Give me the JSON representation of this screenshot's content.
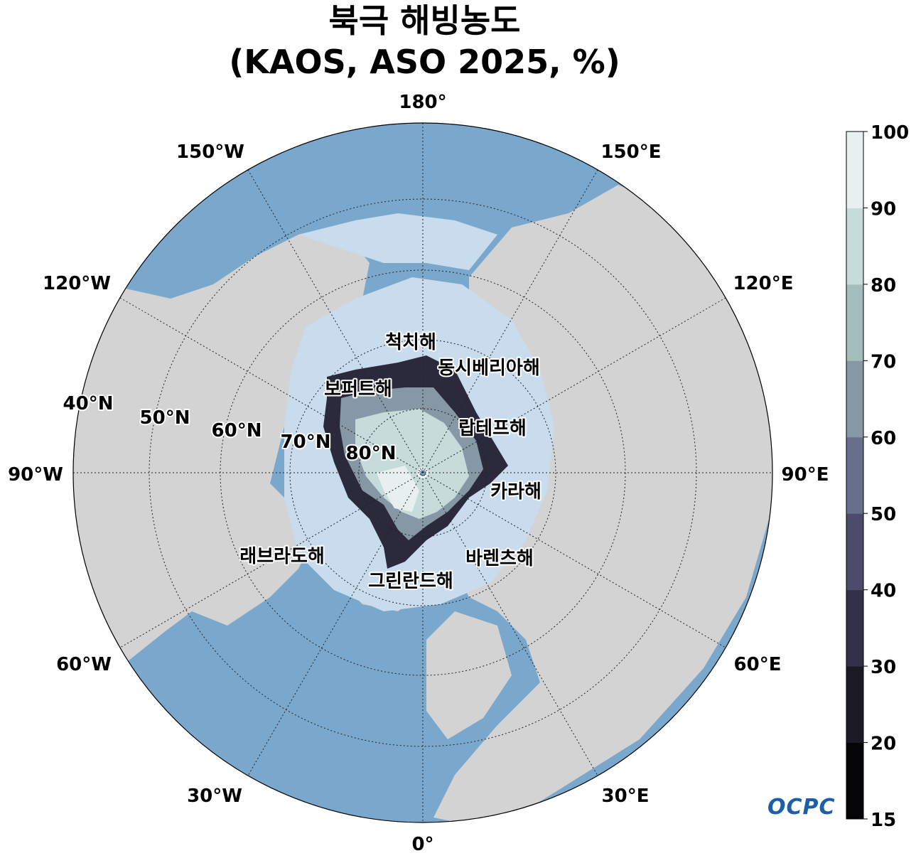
{
  "title": {
    "line1": "북극 해빙농도",
    "line2": "(KAOS, ASO 2025, %)"
  },
  "longitude_labels": [
    "180°",
    "150°E",
    "120°E",
    "90°E",
    "60°E",
    "30°E",
    "0°",
    "30°W",
    "60°W",
    "90°W",
    "120°W",
    "150°W"
  ],
  "latitude_labels": [
    "40°N",
    "50°N",
    "60°N",
    "70°N",
    "80°N"
  ],
  "sea_labels": [
    "척치해",
    "동시베리아해",
    "보퍼트해",
    "랍테프해",
    "카라해",
    "바렌츠해",
    "그린란드해",
    "래브라도해"
  ],
  "colorbar": {
    "ticks": [
      "100",
      "90",
      "80",
      "70",
      "60",
      "50",
      "40",
      "30",
      "20",
      "15"
    ],
    "bin_edges": [
      15,
      20,
      30,
      40,
      50,
      60,
      70,
      80,
      90,
      100
    ],
    "colors": [
      "#050507",
      "#1b1a24",
      "#33304a",
      "#4c4b6c",
      "#667089",
      "#8697a5",
      "#a4bcbb",
      "#c6dcda",
      "#e7f0ef"
    ]
  },
  "colors": {
    "ocean": "#7aa8cd",
    "shelf": "#c8dcee",
    "land": "#d3d3d3",
    "ice_edge": "#2b2a3c",
    "ice_mid": "#8697a5",
    "ice_high": "#c6dcda",
    "ice_max": "#e7f0ef"
  },
  "logo": "OCPC"
}
